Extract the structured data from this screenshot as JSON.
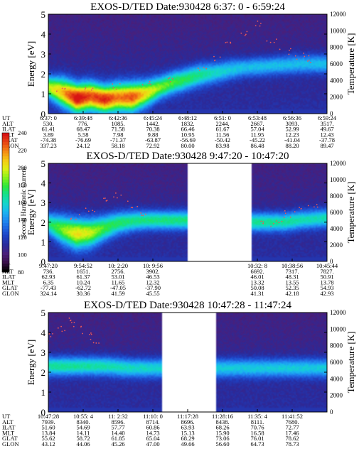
{
  "colors": {
    "background": "#ffffff",
    "spectrogram_scale": [
      "#000000",
      "#3a0f4a",
      "#4a1f7a",
      "#2a2a9a",
      "#1f3fc0",
      "#1f63e0",
      "#1f8ef2",
      "#1ab8f0",
      "#14d8c8",
      "#14e08a",
      "#2ee83a",
      "#8ef21a",
      "#e0f014",
      "#f5c814",
      "#f58a14",
      "#e84a14",
      "#d81414"
    ]
  },
  "chart_data": [
    {
      "type": "heatmap",
      "title": "EXOS-D/TED   Date:930428   6:37: 0 - 6:59:24",
      "ylabel": "Energy [eV]",
      "ylabel_right": "Temperature [K]",
      "ylim": [
        0,
        5
      ],
      "yticks": [
        "0",
        "1",
        "2",
        "3",
        "4",
        "5"
      ],
      "ylim_right": [
        0,
        12000
      ],
      "yticks_right": [
        "0",
        "2000",
        "4000",
        "6000",
        "8000",
        "10000",
        "12000"
      ],
      "data_gaps": [],
      "band": {
        "t": [
          0,
          0.05,
          0.1,
          0.15,
          0.2,
          0.25,
          0.3,
          0.35,
          0.4,
          0.45,
          0.5,
          0.55,
          0.6,
          0.65,
          0.7,
          0.75,
          0.8,
          0.85,
          0.9,
          0.95,
          1
        ],
        "center": [
          1.3,
          1.05,
          0.75,
          0.85,
          0.7,
          0.8,
          0.8,
          1.0,
          1.3,
          1.55,
          1.75,
          1.95,
          2.05,
          2.2,
          2.3,
          2.35,
          2.4,
          2.45,
          2.5,
          2.5,
          2.5
        ],
        "width": [
          0.7,
          0.9,
          0.9,
          0.9,
          0.85,
          0.9,
          0.9,
          0.8,
          0.7,
          0.7,
          0.7,
          0.7,
          0.65,
          0.65,
          0.6,
          0.6,
          0.6,
          0.6,
          0.6,
          0.6,
          0.6
        ],
        "peak": [
          0.55,
          0.65,
          0.85,
          0.75,
          0.8,
          0.7,
          0.75,
          0.6,
          0.5,
          0.45,
          0.42,
          0.38,
          0.33,
          0.3,
          0.28,
          0.28,
          0.28,
          0.28,
          0.28,
          0.28,
          0.28
        ]
      },
      "temperature_points": {
        "t": [
          0.05,
          0.15,
          0.25,
          0.35,
          0.45,
          0.55,
          0.6,
          0.65,
          0.7,
          0.75,
          0.8,
          0.85,
          0.9,
          0.95
        ],
        "k": [
          3000,
          2800,
          3200,
          3500,
          4000,
          5200,
          6800,
          8200,
          9800,
          11000,
          9000,
          7500,
          7000,
          6600
        ]
      },
      "row_labels": [
        "UT",
        "ALT",
        "ILAT",
        "MLT",
        "GLAT",
        "GLON"
      ],
      "time_columns": [
        {
          "t": 0.0,
          "values": [
            "6:37: 0",
            "530.",
            "61.41",
            "3.89",
            "-74.38",
            "337.23"
          ]
        },
        {
          "t": 0.125,
          "values": [
            "6:39:48",
            "776.",
            "68.47",
            "5.58",
            "-76.69",
            "24.12"
          ]
        },
        {
          "t": 0.25,
          "values": [
            "6:42:36",
            "1085.",
            "71.58",
            "7.98",
            "-71.37",
            "58.18"
          ]
        },
        {
          "t": 0.375,
          "values": [
            "6:45:24",
            "1442.",
            "70.38",
            "9.88",
            "-63.87",
            "72.92"
          ]
        },
        {
          "t": 0.5,
          "values": [
            "6:48:12",
            "1832.",
            "66.46",
            "10.95",
            "-56.69",
            "80.00"
          ]
        },
        {
          "t": 0.625,
          "values": [
            "6:51: 0",
            "2244.",
            "61.67",
            "11.56",
            "-50.42",
            "83.98"
          ]
        },
        {
          "t": 0.75,
          "values": [
            "6:53:48",
            "2667.",
            "57.04",
            "11.95",
            "-45.22",
            "86.48"
          ]
        },
        {
          "t": 0.875,
          "values": [
            "6:56:36",
            "3093.",
            "52.99",
            "12.23",
            "-41.04",
            "88.20"
          ]
        },
        {
          "t": 1.0,
          "values": [
            "6:59:24",
            "3517.",
            "49.67",
            "12.43",
            "-37.78",
            "89.47"
          ]
        }
      ]
    },
    {
      "type": "heatmap",
      "title": "EXOS-D/TED   Date:930428   9:47:20 - 10:47:20",
      "ylabel": "Energy [eV]",
      "ylabel_right": "Temperature [K]",
      "ylim": [
        0,
        5
      ],
      "yticks": [
        "0",
        "1",
        "2",
        "3",
        "4",
        "5"
      ],
      "ylim_right": [
        0,
        12000
      ],
      "yticks_right": [
        "0",
        "2000",
        "4000",
        "6000",
        "8000",
        "10000",
        "12000"
      ],
      "data_gaps": [
        [
          0.5,
          0.73
        ]
      ],
      "band": {
        "t": [
          0,
          0.05,
          0.1,
          0.15,
          0.2,
          0.25,
          0.3,
          0.35,
          0.4,
          0.45,
          0.5,
          0.73,
          0.8,
          0.85,
          0.9,
          0.95,
          1
        ],
        "center": [
          1.9,
          1.6,
          1.4,
          1.45,
          1.7,
          1.95,
          2.05,
          2.1,
          2.1,
          2.1,
          2.1,
          2.0,
          2.0,
          2.0,
          2.1,
          2.15,
          2.2
        ],
        "width": [
          0.7,
          0.9,
          0.95,
          0.9,
          0.8,
          0.7,
          0.65,
          0.6,
          0.6,
          0.6,
          0.6,
          0.6,
          0.6,
          0.6,
          0.6,
          0.6,
          0.6
        ],
        "peak": [
          0.4,
          0.5,
          0.6,
          0.55,
          0.45,
          0.42,
          0.4,
          0.4,
          0.4,
          0.4,
          0.4,
          0.38,
          0.38,
          0.38,
          0.36,
          0.35,
          0.35
        ]
      },
      "temperature_points": {
        "t": [
          0.1,
          0.15,
          0.2,
          0.25,
          0.3,
          0.35,
          0.78,
          0.82,
          0.86,
          0.9,
          0.95
        ],
        "k": [
          5500,
          6500,
          7500,
          8000,
          7000,
          6000,
          4500,
          5000,
          5800,
          6500,
          7000
        ]
      },
      "row_labels": [
        "UT",
        "ALT",
        "ILAT",
        "MLT",
        "GLAT",
        "GLON"
      ],
      "time_columns": [
        {
          "t": 0.0,
          "values": [
            "9:47:20",
            "736.",
            "62.93",
            "6.35",
            "-77.43",
            "324.14"
          ]
        },
        {
          "t": 0.125,
          "values": [
            "9:54:52",
            "1651.",
            "61.37",
            "10.24",
            "-62.72",
            "30.36"
          ]
        },
        {
          "t": 0.25,
          "values": [
            "10: 2:20",
            "2756.",
            "53.01",
            "11.65",
            "-47.05",
            "41.59"
          ]
        },
        {
          "t": 0.375,
          "values": [
            "10: 9:56",
            "3902.",
            "46.53",
            "12.32",
            "-37.90",
            "45.55"
          ]
        },
        {
          "t": 0.75,
          "values": [
            "10:32: 8",
            "6692.",
            "46.01",
            "13.32",
            "50.08",
            "41.31"
          ]
        },
        {
          "t": 0.875,
          "values": [
            "10:38:56",
            "7317.",
            "48.31",
            "13.55",
            "52.35",
            "42.18"
          ]
        },
        {
          "t": 1.0,
          "values": [
            "10:45:44",
            "7827.",
            "50.91",
            "13.78",
            "54.93",
            "42.93"
          ]
        }
      ],
      "colorbar": {
        "label": "Second Harmonic Current",
        "ticks": [
          "80",
          "100",
          "120",
          "140",
          "160",
          "180",
          "200",
          "220",
          "240"
        ],
        "range": [
          80,
          240
        ]
      }
    },
    {
      "type": "heatmap",
      "title": "EXOS-D/TED   Date:930428   10:47:28 - 11:47:24",
      "ylabel": "Energy [eV]",
      "ylabel_right": "Temperature [K]",
      "ylim": [
        0,
        5
      ],
      "yticks": [
        "0",
        "1",
        "2",
        "3",
        "4",
        "5"
      ],
      "ylim_right": [
        0,
        12000
      ],
      "yticks_right": [
        "0",
        "2000",
        "4000",
        "6000",
        "8000",
        "10000",
        "12000"
      ],
      "data_gaps": [
        [
          0.41,
          0.6
        ]
      ],
      "band": {
        "t": [
          0,
          0.1,
          0.2,
          0.3,
          0.41,
          0.6,
          0.7,
          0.8,
          0.9,
          1
        ],
        "center": [
          2.3,
          2.3,
          2.3,
          2.2,
          2.2,
          2.2,
          2.2,
          2.2,
          2.2,
          2.2
        ],
        "width": [
          0.6,
          0.6,
          0.6,
          0.6,
          0.6,
          0.6,
          0.6,
          0.6,
          0.6,
          0.6
        ],
        "peak": [
          0.38,
          0.38,
          0.36,
          0.34,
          0.32,
          0.3,
          0.3,
          0.3,
          0.3,
          0.3
        ]
      },
      "temperature_points": {
        "t": [
          0.02,
          0.05,
          0.08,
          0.11,
          0.14,
          0.17
        ],
        "k": [
          9000,
          10000,
          11000,
          10500,
          9500,
          8500
        ]
      },
      "row_labels": [
        "UT",
        "ALT",
        "ILAT",
        "MLT",
        "GLAT",
        "GLON"
      ],
      "time_columns": [
        {
          "t": 0.0,
          "values": [
            "10:47:28",
            "7939.",
            "51.60",
            "13.84",
            "55.62",
            "43.12"
          ]
        },
        {
          "t": 0.125,
          "values": [
            "10:55: 4",
            "8340.",
            "54.69",
            "14.11",
            "58.72",
            "44.06"
          ]
        },
        {
          "t": 0.25,
          "values": [
            "11: 2:32",
            "8596.",
            "57.77",
            "14.40",
            "61.85",
            "45.26"
          ]
        },
        {
          "t": 0.375,
          "values": [
            "11:10: 0",
            "8714.",
            "60.86",
            "14.73",
            "65.04",
            "47.00"
          ]
        },
        {
          "t": 0.5,
          "values": [
            "11:17:28",
            "8696.",
            "63.93",
            "15.13",
            "68.29",
            "49.66"
          ]
        },
        {
          "t": 0.625,
          "values": [
            "11:28:16",
            "8438.",
            "68.26",
            "15.90",
            "73.06",
            "56.60"
          ]
        },
        {
          "t": 0.75,
          "values": [
            "11:35: 4",
            "8111.",
            "70.76",
            "16.58",
            "76.01",
            "64.73"
          ]
        },
        {
          "t": 0.875,
          "values": [
            "11:41:52",
            "7680.",
            "72.77",
            "17.46",
            "78.62",
            "78.73"
          ]
        }
      ]
    }
  ]
}
